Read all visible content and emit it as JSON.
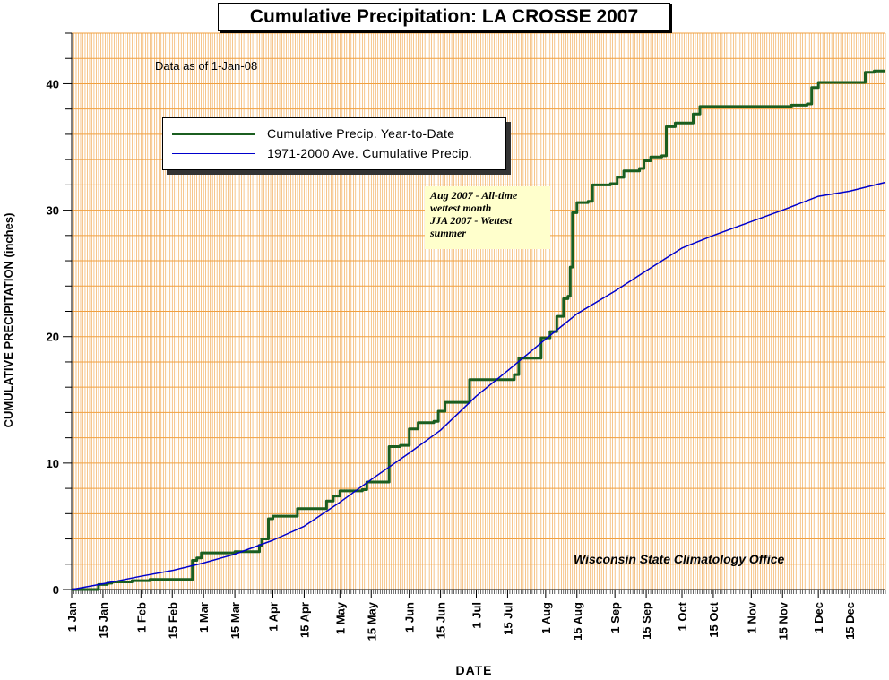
{
  "chart_data": {
    "type": "line",
    "title": "Cumulative Precipitation: LA CROSSE 2007",
    "xlabel": "DATE",
    "ylabel": "CUMULATIVE PRECIPITATION (inches)",
    "ylim": [
      0,
      44
    ],
    "yticks": [
      0,
      10,
      20,
      30,
      40
    ],
    "xlim": [
      "2007-01-01",
      "2007-12-31"
    ],
    "xticks": [
      {
        "label": "1 Jan",
        "date": "2007-01-01"
      },
      {
        "label": "15 Jan",
        "date": "2007-01-15"
      },
      {
        "label": "1 Feb",
        "date": "2007-02-01"
      },
      {
        "label": "15 Feb",
        "date": "2007-02-15"
      },
      {
        "label": "1 Mar",
        "date": "2007-03-01"
      },
      {
        "label": "15 Mar",
        "date": "2007-03-15"
      },
      {
        "label": "1 Apr",
        "date": "2007-04-01"
      },
      {
        "label": "15 Apr",
        "date": "2007-04-15"
      },
      {
        "label": "1 May",
        "date": "2007-05-01"
      },
      {
        "label": "15 May",
        "date": "2007-05-15"
      },
      {
        "label": "1 Jun",
        "date": "2007-06-01"
      },
      {
        "label": "15 Jun",
        "date": "2007-06-15"
      },
      {
        "label": "1 Jul",
        "date": "2007-07-01"
      },
      {
        "label": "15 Jul",
        "date": "2007-07-15"
      },
      {
        "label": "1 Aug",
        "date": "2007-08-01"
      },
      {
        "label": "15 Aug",
        "date": "2007-08-15"
      },
      {
        "label": "1 Sep",
        "date": "2007-09-01"
      },
      {
        "label": "15 Sep",
        "date": "2007-09-15"
      },
      {
        "label": "1 Oct",
        "date": "2007-10-01"
      },
      {
        "label": "15 Oct",
        "date": "2007-10-15"
      },
      {
        "label": "1 Nov",
        "date": "2007-11-01"
      },
      {
        "label": "15 Nov",
        "date": "2007-11-15"
      },
      {
        "label": "1 Dec",
        "date": "2007-12-01"
      },
      {
        "label": "15 Dec",
        "date": "2007-12-15"
      }
    ],
    "grid": true,
    "legend_position": "upper-left",
    "series": [
      {
        "name": "Cumulative Precip. Year-to-Date",
        "color": "#1b5e20",
        "step": true,
        "points": [
          [
            "2007-01-01",
            0.0
          ],
          [
            "2007-01-12",
            0.0
          ],
          [
            "2007-01-13",
            0.4
          ],
          [
            "2007-01-17",
            0.5
          ],
          [
            "2007-01-19",
            0.6
          ],
          [
            "2007-01-27",
            0.6
          ],
          [
            "2007-01-28",
            0.7
          ],
          [
            "2007-02-04",
            0.7
          ],
          [
            "2007-02-05",
            0.8
          ],
          [
            "2007-02-23",
            0.8
          ],
          [
            "2007-02-24",
            2.3
          ],
          [
            "2007-02-26",
            2.5
          ],
          [
            "2007-02-28",
            2.9
          ],
          [
            "2007-03-14",
            2.9
          ],
          [
            "2007-03-15",
            3.0
          ],
          [
            "2007-03-22",
            3.0
          ],
          [
            "2007-03-26",
            3.5
          ],
          [
            "2007-03-27",
            4.0
          ],
          [
            "2007-03-30",
            5.6
          ],
          [
            "2007-04-01",
            5.8
          ],
          [
            "2007-04-10",
            5.8
          ],
          [
            "2007-04-12",
            6.4
          ],
          [
            "2007-04-21",
            6.4
          ],
          [
            "2007-04-25",
            7.0
          ],
          [
            "2007-04-28",
            7.4
          ],
          [
            "2007-05-01",
            7.8
          ],
          [
            "2007-05-11",
            7.9
          ],
          [
            "2007-05-13",
            8.5
          ],
          [
            "2007-05-21",
            8.5
          ],
          [
            "2007-05-23",
            11.3
          ],
          [
            "2007-05-28",
            11.4
          ],
          [
            "2007-06-01",
            12.7
          ],
          [
            "2007-06-05",
            13.2
          ],
          [
            "2007-06-12",
            13.3
          ],
          [
            "2007-06-14",
            14.1
          ],
          [
            "2007-06-17",
            14.8
          ],
          [
            "2007-06-26",
            14.8
          ],
          [
            "2007-06-28",
            16.6
          ],
          [
            "2007-07-15",
            16.6
          ],
          [
            "2007-07-18",
            17.0
          ],
          [
            "2007-07-20",
            18.3
          ],
          [
            "2007-07-27",
            18.3
          ],
          [
            "2007-07-30",
            19.9
          ],
          [
            "2007-08-03",
            20.4
          ],
          [
            "2007-08-06",
            21.6
          ],
          [
            "2007-08-09",
            23.0
          ],
          [
            "2007-08-11",
            23.2
          ],
          [
            "2007-08-12",
            25.5
          ],
          [
            "2007-08-13",
            29.8
          ],
          [
            "2007-08-15",
            30.6
          ],
          [
            "2007-08-20",
            30.7
          ],
          [
            "2007-08-22",
            32.0
          ],
          [
            "2007-08-30",
            32.1
          ],
          [
            "2007-09-02",
            32.6
          ],
          [
            "2007-09-05",
            33.1
          ],
          [
            "2007-09-12",
            33.3
          ],
          [
            "2007-09-14",
            33.9
          ],
          [
            "2007-09-17",
            34.2
          ],
          [
            "2007-09-22",
            34.3
          ],
          [
            "2007-09-24",
            36.6
          ],
          [
            "2007-09-28",
            36.9
          ],
          [
            "2007-10-04",
            36.9
          ],
          [
            "2007-10-06",
            37.6
          ],
          [
            "2007-10-09",
            38.2
          ],
          [
            "2007-10-25",
            38.2
          ],
          [
            "2007-11-19",
            38.3
          ],
          [
            "2007-11-26",
            38.4
          ],
          [
            "2007-11-28",
            39.7
          ],
          [
            "2007-12-01",
            40.1
          ],
          [
            "2007-12-20",
            40.1
          ],
          [
            "2007-12-22",
            40.9
          ],
          [
            "2007-12-26",
            41.0
          ],
          [
            "2007-12-31",
            41.0
          ]
        ]
      },
      {
        "name": "1971-2000 Ave. Cumulative Precip.",
        "color": "#0000cc",
        "step": false,
        "points": [
          [
            "2007-01-01",
            0.0
          ],
          [
            "2007-01-15",
            0.45
          ],
          [
            "2007-02-01",
            1.05
          ],
          [
            "2007-02-15",
            1.5
          ],
          [
            "2007-03-01",
            2.1
          ],
          [
            "2007-03-15",
            2.8
          ],
          [
            "2007-04-01",
            3.9
          ],
          [
            "2007-04-15",
            5.0
          ],
          [
            "2007-05-01",
            6.9
          ],
          [
            "2007-05-15",
            8.7
          ],
          [
            "2007-06-01",
            10.8
          ],
          [
            "2007-06-15",
            12.6
          ],
          [
            "2007-07-01",
            15.3
          ],
          [
            "2007-07-15",
            17.3
          ],
          [
            "2007-08-01",
            19.8
          ],
          [
            "2007-08-15",
            21.8
          ],
          [
            "2007-09-01",
            23.6
          ],
          [
            "2007-09-15",
            25.2
          ],
          [
            "2007-10-01",
            27.0
          ],
          [
            "2007-10-15",
            28.0
          ],
          [
            "2007-11-01",
            29.1
          ],
          [
            "2007-11-15",
            30.0
          ],
          [
            "2007-12-01",
            31.1
          ],
          [
            "2007-12-15",
            31.5
          ],
          [
            "2007-12-31",
            32.2
          ]
        ]
      }
    ]
  },
  "notes": {
    "data_as_of": "Data as of 1-Jan-08",
    "annotation_lines": [
      "Aug 2007 - All-time",
      "wettest month",
      "JJA 2007 - Wettest",
      "summer"
    ],
    "credit": "Wisconsin State Climatology Office"
  },
  "colors": {
    "grid": "#f0a040",
    "plot_background": "#ffffff",
    "annotation_background": "#ffffcc"
  }
}
